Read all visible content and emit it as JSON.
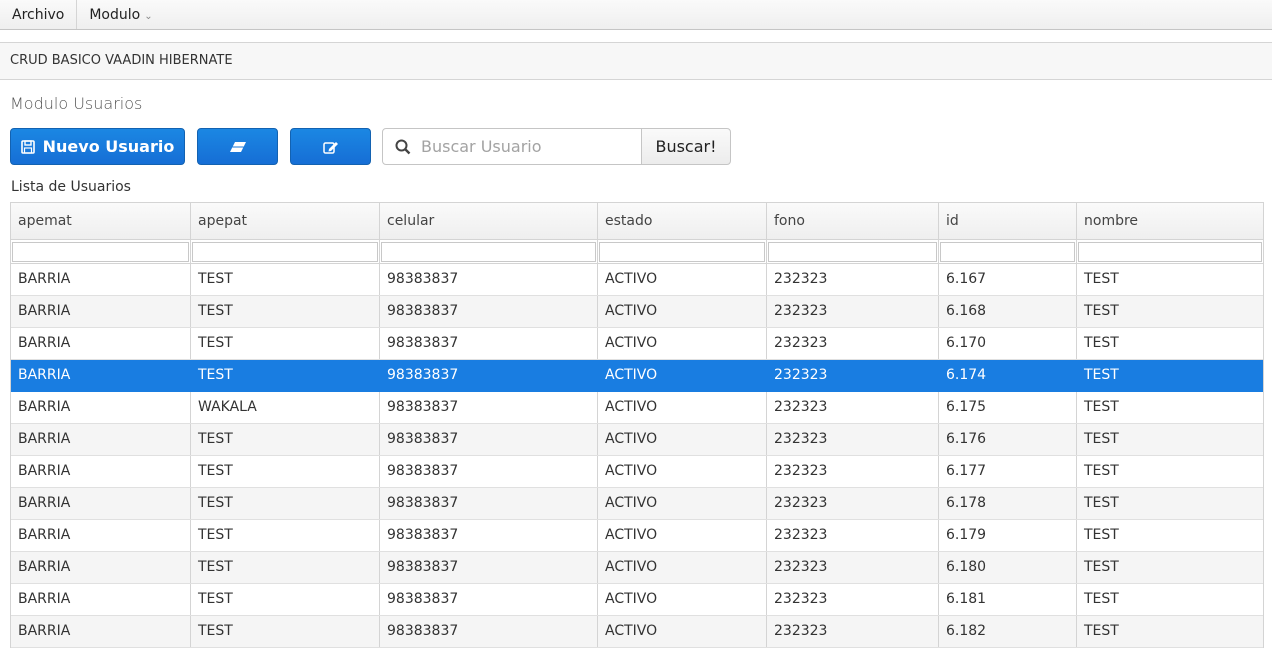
{
  "menu": {
    "items": [
      {
        "label": "Archivo"
      },
      {
        "label": "Modulo"
      }
    ]
  },
  "app_title": "CRUD BASICO VAADIN HIBERNATE",
  "module_title": "Modulo Usuarios",
  "toolbar": {
    "new_user_label": "Nuevo Usuario",
    "search_placeholder": "Buscar Usuario",
    "search_value": "",
    "search_button": "Buscar!"
  },
  "colors": {
    "primary": "#197de1",
    "selected_row": "#197de1"
  },
  "table": {
    "caption": "Lista de Usuarios",
    "columns": [
      "apemat",
      "apepat",
      "celular",
      "estado",
      "fono",
      "id",
      "nombre"
    ],
    "selected_index": 3,
    "rows": [
      [
        "BARRIA",
        "TEST",
        "98383837",
        "ACTIVO",
        "232323",
        "6.167",
        "TEST"
      ],
      [
        "BARRIA",
        "TEST",
        "98383837",
        "ACTIVO",
        "232323",
        "6.168",
        "TEST"
      ],
      [
        "BARRIA",
        "TEST",
        "98383837",
        "ACTIVO",
        "232323",
        "6.170",
        "TEST"
      ],
      [
        "BARRIA",
        "TEST",
        "98383837",
        "ACTIVO",
        "232323",
        "6.174",
        "TEST"
      ],
      [
        "BARRIA",
        "WAKALA",
        "98383837",
        "ACTIVO",
        "232323",
        "6.175",
        "TEST"
      ],
      [
        "BARRIA",
        "TEST",
        "98383837",
        "ACTIVO",
        "232323",
        "6.176",
        "TEST"
      ],
      [
        "BARRIA",
        "TEST",
        "98383837",
        "ACTIVO",
        "232323",
        "6.177",
        "TEST"
      ],
      [
        "BARRIA",
        "TEST",
        "98383837",
        "ACTIVO",
        "232323",
        "6.178",
        "TEST"
      ],
      [
        "BARRIA",
        "TEST",
        "98383837",
        "ACTIVO",
        "232323",
        "6.179",
        "TEST"
      ],
      [
        "BARRIA",
        "TEST",
        "98383837",
        "ACTIVO",
        "232323",
        "6.180",
        "TEST"
      ],
      [
        "BARRIA",
        "TEST",
        "98383837",
        "ACTIVO",
        "232323",
        "6.181",
        "TEST"
      ],
      [
        "BARRIA",
        "TEST",
        "98383837",
        "ACTIVO",
        "232323",
        "6.182",
        "TEST"
      ]
    ]
  }
}
